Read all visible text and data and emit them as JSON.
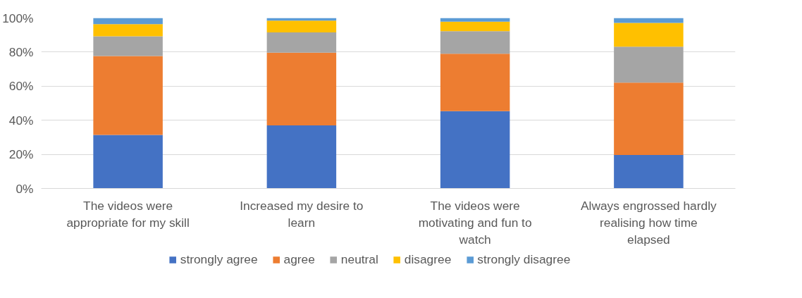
{
  "chart_data": {
    "type": "bar",
    "stacked": true,
    "categories": [
      "The videos were appropriate for my skill",
      "Increased my desire to learn",
      "The videos were motivating and fun to watch",
      "Always engrossed hardly realising how time elapsed"
    ],
    "series": [
      {
        "name": "strongly agree",
        "color": "#4472c4",
        "values": [
          31.4,
          37.0,
          45.3,
          19.6
        ]
      },
      {
        "name": "agree",
        "color": "#ed7d31",
        "values": [
          46.3,
          42.6,
          33.7,
          42.5
        ]
      },
      {
        "name": "neutral",
        "color": "#a5a5a5",
        "values": [
          11.6,
          11.9,
          13.3,
          21.1
        ]
      },
      {
        "name": "disagree",
        "color": "#ffc000",
        "values": [
          7.1,
          7.0,
          5.5,
          13.9
        ]
      },
      {
        "name": "strongly disagree",
        "color": "#5b9bd5",
        "values": [
          3.6,
          1.5,
          2.2,
          2.9
        ]
      }
    ],
    "ylim": [
      0,
      100
    ],
    "yticks": [
      {
        "value": 0,
        "label": "0%"
      },
      {
        "value": 20,
        "label": "20%"
      },
      {
        "value": 40,
        "label": "40%"
      },
      {
        "value": 60,
        "label": "60%"
      },
      {
        "value": 80,
        "label": "80%"
      },
      {
        "value": 100,
        "label": "100%"
      }
    ],
    "grid": "y",
    "legend": "bottom"
  }
}
